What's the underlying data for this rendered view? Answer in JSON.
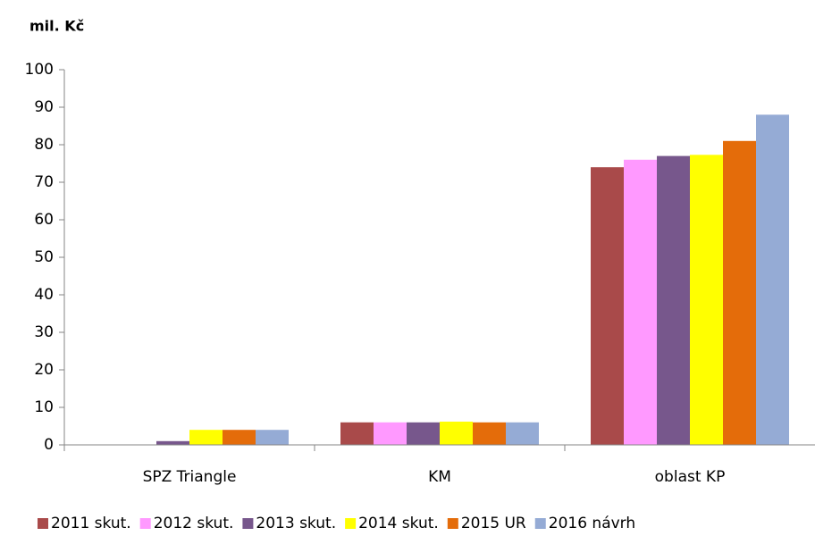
{
  "chart_data": {
    "type": "bar",
    "y_label": "mil. Kč",
    "categories": [
      "SPZ Triangle",
      "KM",
      "oblast KP"
    ],
    "series": [
      {
        "name": "2011 skut.",
        "color": "#a94a4a",
        "values": [
          0,
          6,
          74
        ]
      },
      {
        "name": "2012 skut.",
        "color": "#ff99ff",
        "values": [
          0,
          6,
          76
        ]
      },
      {
        "name": "2013 skut.",
        "color": "#77578c",
        "values": [
          1,
          6,
          77
        ]
      },
      {
        "name": "2014 skut.",
        "color": "#ffff00",
        "values": [
          4,
          6.2,
          77.3
        ]
      },
      {
        "name": "2015 UR",
        "color": "#e46c0a",
        "values": [
          4,
          6,
          81
        ]
      },
      {
        "name": "2016 návrh",
        "color": "#95abd5",
        "values": [
          4,
          6,
          88
        ]
      }
    ],
    "ylim": [
      0,
      100
    ],
    "yticks": [
      0,
      10,
      20,
      30,
      40,
      50,
      60,
      70,
      80,
      90,
      100
    ],
    "grid": false,
    "legend": "bottom"
  }
}
